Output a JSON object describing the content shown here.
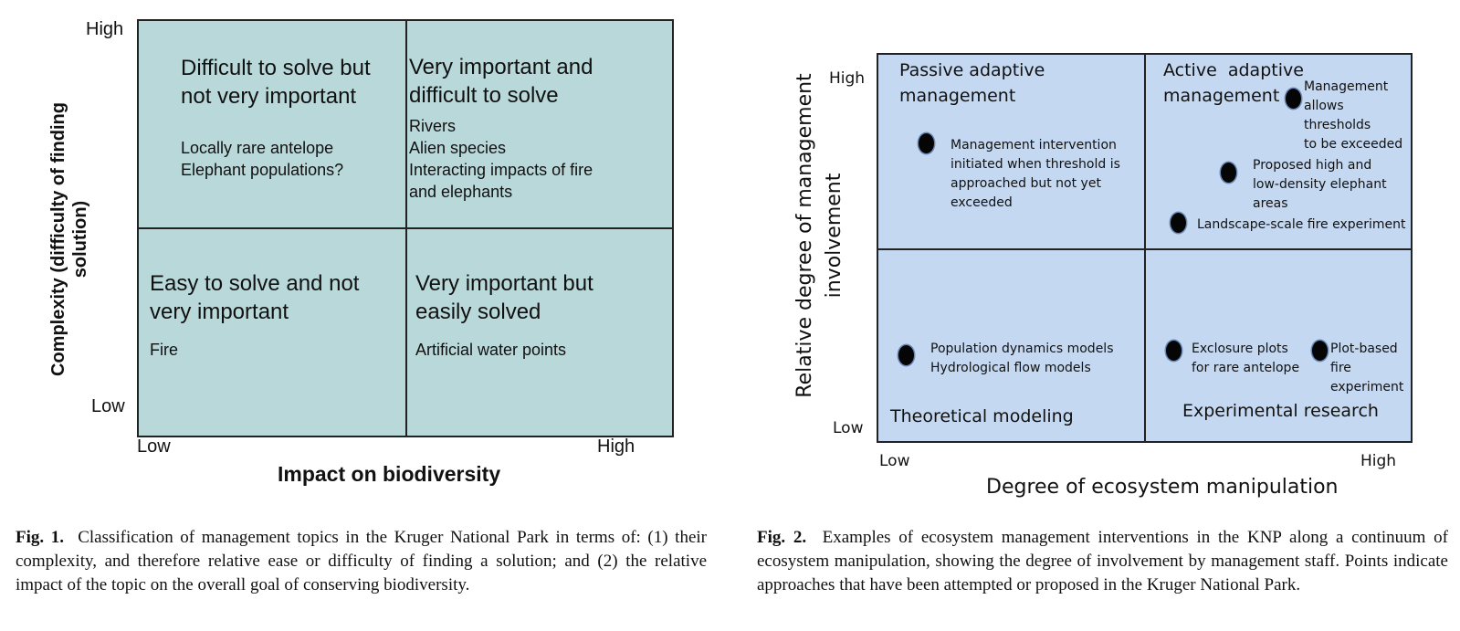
{
  "figure1": {
    "y_axis_title": "Complexity (difficulty of finding solution)",
    "x_axis_title": "Impact on biodiversity",
    "y_high": "High",
    "y_low": "Low",
    "x_low": "Low",
    "x_high": "High",
    "quadrants": {
      "top_left": {
        "title_line1": "Difficult to solve but",
        "title_line2": "not very important",
        "items": [
          "Locally rare antelope",
          "Elephant populations?"
        ]
      },
      "top_right": {
        "title_line1": "Very important and",
        "title_line2": "difficult to solve",
        "items": [
          "Rivers",
          "Alien species",
          "Interacting impacts of fire",
          "and elephants"
        ]
      },
      "bottom_left": {
        "title_line1": "Easy to solve and not",
        "title_line2": "very important",
        "items": [
          "Fire"
        ]
      },
      "bottom_right": {
        "title_line1": "Very important but",
        "title_line2": "easily solved",
        "items": [
          "Artificial water points"
        ]
      }
    },
    "colors": {
      "fill": "#b9d8da",
      "line": "#222222"
    }
  },
  "figure2": {
    "y_axis_title_line1": "Relative degree of management",
    "y_axis_title_line2": "involvement",
    "x_axis_title": "Degree of ecosystem manipulation",
    "y_high": "High",
    "y_low": "Low",
    "x_low": "Low",
    "x_high": "High",
    "quadrants": {
      "top_left_line1": "Passive adaptive",
      "top_left_line2": "management",
      "top_right_line1": "Active  adaptive",
      "top_right_line2": "management",
      "bottom_left": "Theoretical modeling",
      "bottom_right": "Experimental research"
    },
    "points": [
      {
        "lines": [
          "Management intervention",
          "initiated when threshold is",
          "approached but not yet",
          "exceeded"
        ]
      },
      {
        "lines": [
          "Management",
          "allows",
          "thresholds",
          "to be exceeded"
        ]
      },
      {
        "lines": [
          "Proposed high and",
          "low-density elephant",
          "areas"
        ]
      },
      {
        "lines": [
          "Landscape-scale fire experiment"
        ]
      },
      {
        "lines": [
          "Population dynamics models",
          "Hydrological flow models"
        ]
      },
      {
        "lines": [
          "Exclosure plots",
          "for rare antelope"
        ]
      },
      {
        "lines": [
          "Plot-based",
          "fire",
          "experiment"
        ]
      }
    ],
    "colors": {
      "fill": "#c5d8f1",
      "line": "#222222",
      "dot": "#050505"
    }
  },
  "captions": {
    "fig1_label": "Fig. 1.",
    "fig1_text": "Classification of management topics in the Kruger National Park in terms of: (1) their complexity, and therefore relative ease or difficulty of finding a solution; and (2) the relative impact of the topic on the overall goal of conserving biodiversity.",
    "fig2_label": "Fig. 2.",
    "fig2_text": "Examples of ecosystem management interventions in the KNP along a continuum of ecosystem manipulation, showing the degree of involvement by management staff. Points indicate approaches that have been attempted or proposed in the Kruger National Park."
  }
}
